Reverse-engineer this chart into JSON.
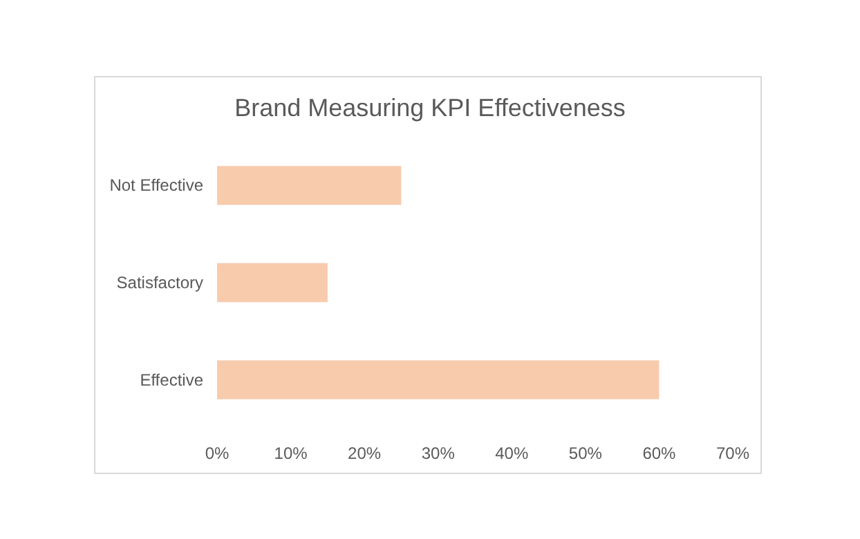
{
  "chart_data": {
    "type": "bar",
    "orientation": "horizontal",
    "title": "Brand Measuring KPI Effectiveness",
    "categories": [
      "Not Effective",
      "Satisfactory",
      "Effective"
    ],
    "values": [
      25,
      15,
      60
    ],
    "color": "#f8cbad",
    "xlim": [
      0,
      70
    ],
    "xticks": [
      {
        "value": 0,
        "label": "0%"
      },
      {
        "value": 10,
        "label": "10%"
      },
      {
        "value": 20,
        "label": "20%"
      },
      {
        "value": 30,
        "label": "30%"
      },
      {
        "value": 40,
        "label": "40%"
      },
      {
        "value": 50,
        "label": "50%"
      },
      {
        "value": 60,
        "label": "60%"
      },
      {
        "value": 70,
        "label": "70%"
      }
    ],
    "data_labels": false
  }
}
